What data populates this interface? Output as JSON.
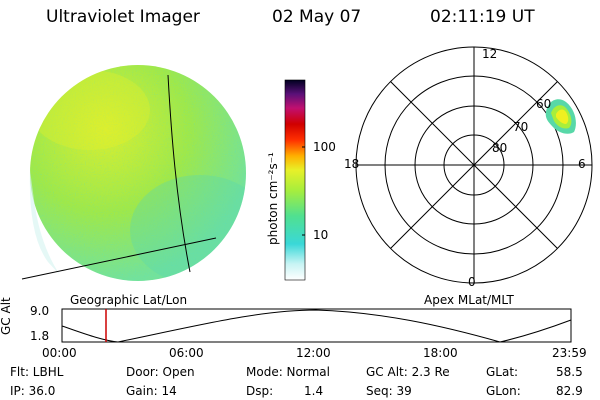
{
  "header": {
    "instrument": "Ultraviolet Imager",
    "date": "02 May 07",
    "time": "02:11:19 UT"
  },
  "colorbar": {
    "unit_label": "photon cm⁻²s⁻¹",
    "tick_100": "100",
    "tick_10": "10"
  },
  "polar": {
    "mlt_12": "12",
    "mlt_18": "18",
    "mlt_6": "6",
    "mlt_0": "0",
    "lat_60": "60",
    "lat_70": "70",
    "lat_80": "80"
  },
  "labels": {
    "geo": "Geographic Lat/Lon",
    "apex": "Apex MLat/MLT"
  },
  "altitude_plot": {
    "axis_label": "GC Alt",
    "ytick_high": "9.0",
    "ytick_low": "1.8",
    "xticks": [
      "00:00",
      "06:00",
      "12:00",
      "18:00",
      "23:59"
    ]
  },
  "info": {
    "flt": "Flt: LBHL",
    "ip": "IP: 36.0",
    "door": "Door: Open",
    "gain": "Gain: 14",
    "mode": "Mode: Normal",
    "dsp_label": "Dsp:",
    "dsp_value": "1.4",
    "gcalt": "GC Alt: 2.3 Re",
    "seq": "Seq: 39",
    "glat_label": "GLat:",
    "glat_value": "58.5",
    "glon_label": "GLon:",
    "glon_value": "82.9"
  },
  "colors": {
    "marker": "#cc0000",
    "aurora": "#f0f020",
    "earth_base": "#a8ee3c"
  }
}
